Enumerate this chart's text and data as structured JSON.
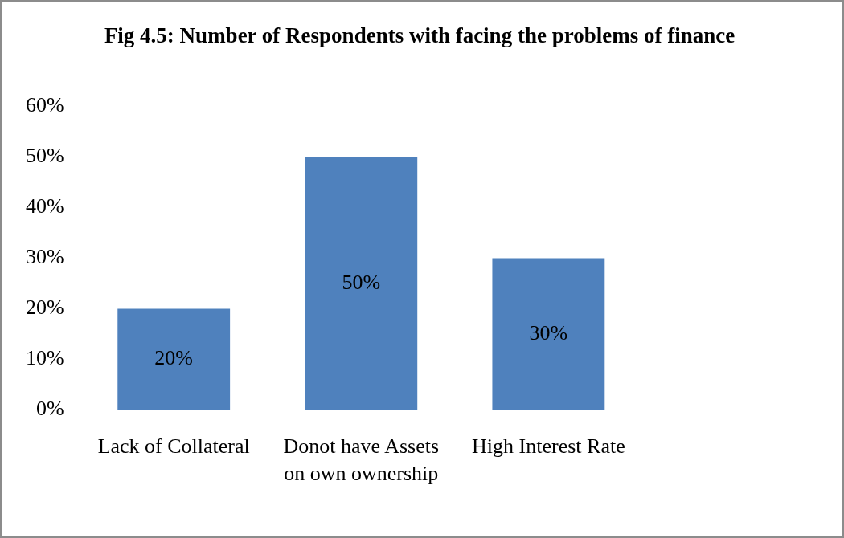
{
  "chart_data": {
    "type": "bar",
    "title": "Fig 4.5: Number of Respondents with facing the problems of finance",
    "categories": [
      "Lack of Collateral",
      "Donot have Assets on own ownership",
      "High Interest Rate",
      null
    ],
    "values": [
      20,
      50,
      30,
      null
    ],
    "color": "#4f81bd",
    "ylim": [
      0,
      60
    ],
    "yticks": [
      {
        "value": 0,
        "label": "0%"
      },
      {
        "value": 10,
        "label": "10%"
      },
      {
        "value": 20,
        "label": "20%"
      },
      {
        "value": 30,
        "label": "30%"
      },
      {
        "value": 40,
        "label": "40%"
      },
      {
        "value": 50,
        "label": "50%"
      },
      {
        "value": 60,
        "label": "60%"
      }
    ],
    "value_labels": [
      "20%",
      "50%",
      "30%",
      null
    ],
    "grid": false,
    "legend": false
  }
}
